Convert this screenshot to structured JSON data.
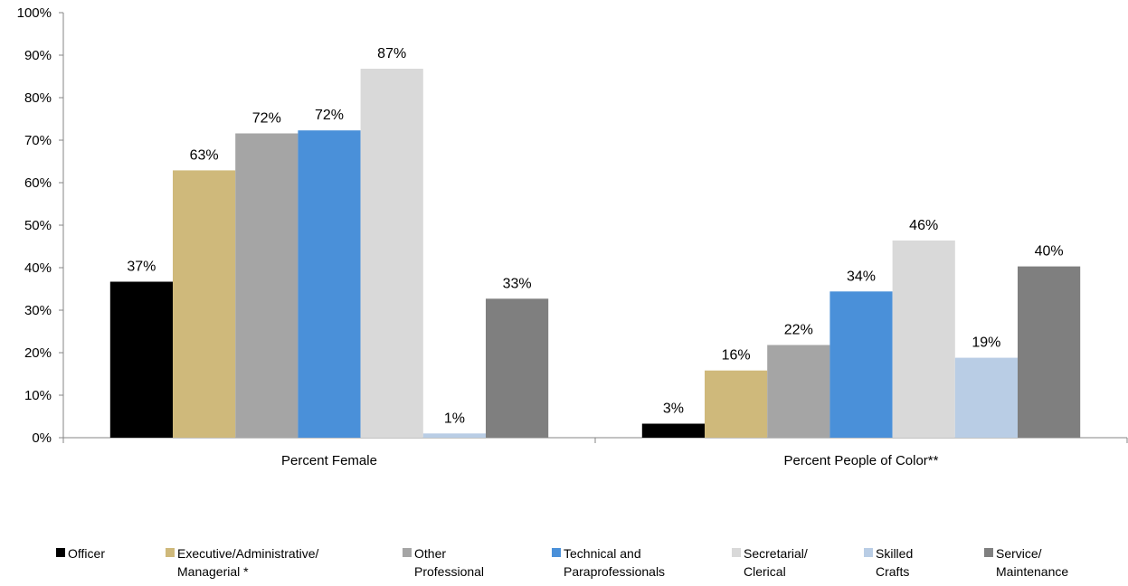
{
  "chart_data": {
    "type": "bar",
    "categories": [
      "Percent Female",
      "Percent People of Color**"
    ],
    "series": [
      {
        "name": "Officer",
        "label_lines": [
          "Officer"
        ],
        "color": "#000000",
        "values": [
          37,
          3
        ]
      },
      {
        "name": "Executive/Administrative/ Managerial *",
        "label_lines": [
          "Executive/Administrative/",
          "Managerial *"
        ],
        "color": "#CFB97B",
        "values": [
          63,
          16
        ]
      },
      {
        "name": "Other Professional",
        "label_lines": [
          "Other",
          "Professional"
        ],
        "color": "#A5A5A5",
        "values": [
          72,
          22
        ]
      },
      {
        "name": "Technical and Paraprofessionals",
        "label_lines": [
          "Technical and",
          "Paraprofessionals"
        ],
        "color": "#4A90D9",
        "values": [
          72,
          34
        ]
      },
      {
        "name": "Secretarial/ Clerical",
        "label_lines": [
          "Secretarial/",
          "Clerical"
        ],
        "color": "#D9D9D9",
        "values": [
          87,
          46
        ]
      },
      {
        "name": "Skilled Crafts",
        "label_lines": [
          "Skilled",
          "Crafts"
        ],
        "color": "#B9CDE5",
        "values": [
          1,
          19
        ]
      },
      {
        "name": "Service/ Maintenance",
        "label_lines": [
          "Service/",
          "Maintenance"
        ],
        "color": "#7F7F7F",
        "values": [
          33,
          40
        ]
      }
    ],
    "plotted_values": [
      [
        36.7,
        3.3
      ],
      [
        62.9,
        15.8
      ],
      [
        71.6,
        21.8
      ],
      [
        72.3,
        34.4
      ],
      [
        86.8,
        46.4
      ],
      [
        1.0,
        18.8
      ],
      [
        32.7,
        40.3
      ]
    ],
    "data_labels": [
      [
        "37%",
        "3%"
      ],
      [
        "63%",
        "16%"
      ],
      [
        "72%",
        "22%"
      ],
      [
        "72%",
        "34%"
      ],
      [
        "87%",
        "46%"
      ],
      [
        "1%",
        "19%"
      ],
      [
        "33%",
        "40%"
      ]
    ],
    "y_ticks": [
      "0%",
      "10%",
      "20%",
      "30%",
      "40%",
      "50%",
      "60%",
      "70%",
      "80%",
      "90%",
      "100%"
    ],
    "ylim": [
      0,
      100
    ],
    "title": "",
    "xlabel": "",
    "ylabel": "",
    "grid": false,
    "legend_position": "bottom"
  }
}
